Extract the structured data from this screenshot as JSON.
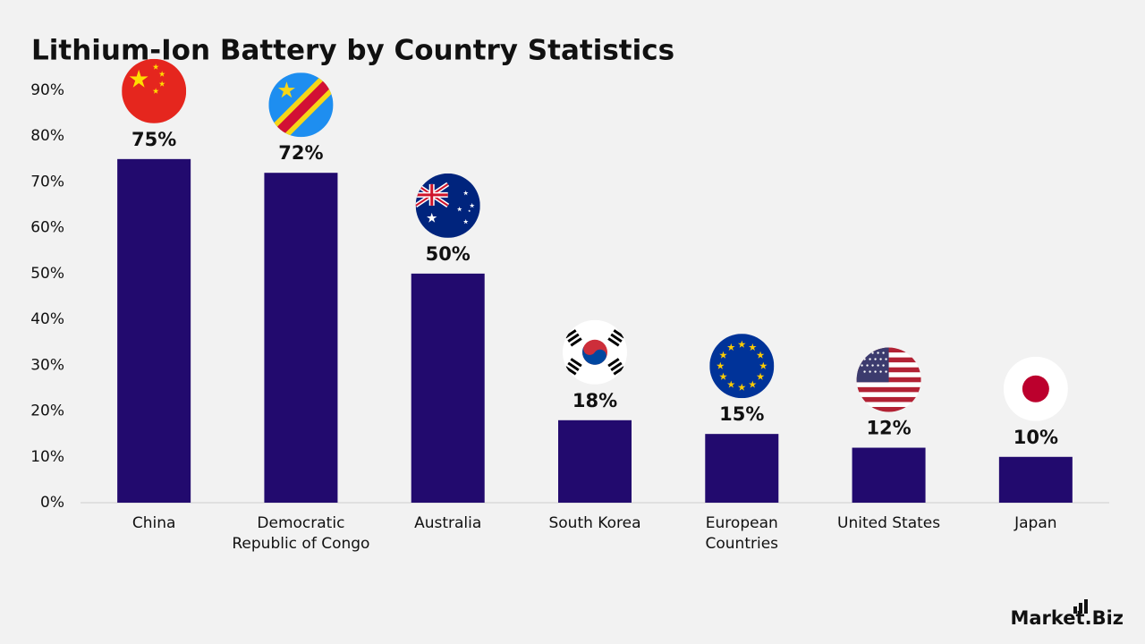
{
  "chart_data": {
    "type": "bar",
    "title": "Lithium-Ion Battery by Country Statistics",
    "categories": [
      "China",
      "Democratic Republic of Congo",
      "Australia",
      "South Korea",
      "European Countries",
      "United States",
      "Japan"
    ],
    "values": [
      75,
      72,
      50,
      18,
      15,
      12,
      10
    ],
    "value_labels": [
      "75%",
      "72%",
      "50%",
      "18%",
      "15%",
      "12%",
      "10%"
    ],
    "color": "#220a6e",
    "ylim": [
      0,
      90
    ],
    "yticks": [
      {
        "value": 0,
        "label": "0%"
      },
      {
        "value": 10,
        "label": "10%"
      },
      {
        "value": 20,
        "label": "20%"
      },
      {
        "value": 30,
        "label": "30%"
      },
      {
        "value": 40,
        "label": "40%"
      },
      {
        "value": 50,
        "label": "50%"
      },
      {
        "value": 60,
        "label": "60%"
      },
      {
        "value": 70,
        "label": "70%"
      },
      {
        "value": 80,
        "label": "80%"
      },
      {
        "value": 90,
        "label": "90%"
      }
    ],
    "grid": false
  },
  "brand": "Market.Biz"
}
